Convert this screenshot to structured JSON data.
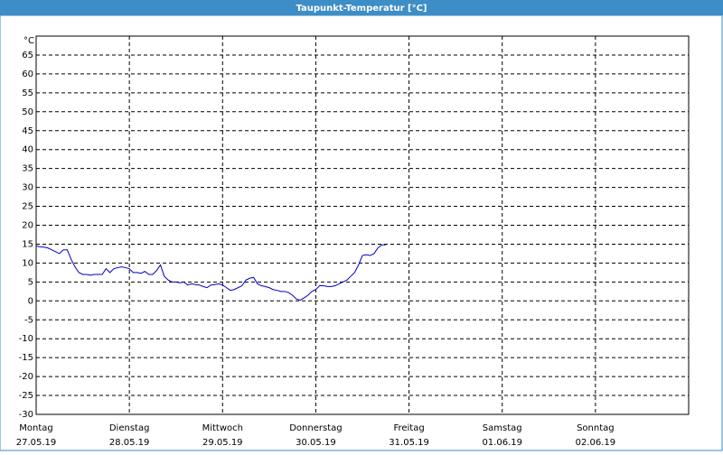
{
  "chart_data": {
    "type": "line",
    "title": "Taupunkt-Temperatur [°C]",
    "y_unit": "°C",
    "x": [
      0,
      1,
      2,
      3,
      4,
      5,
      6,
      7,
      8,
      9,
      10,
      11,
      12,
      13,
      14,
      15,
      16,
      17,
      18,
      19,
      20,
      21,
      22,
      23,
      24,
      25,
      26,
      27,
      28,
      29,
      30,
      31,
      32,
      33,
      34,
      35,
      36,
      37,
      38,
      39,
      40,
      41,
      42,
      43,
      44,
      45,
      46,
      47,
      48,
      49,
      50,
      51,
      52,
      53,
      54,
      55,
      56,
      57,
      58,
      59,
      60,
      61,
      62,
      63,
      64,
      65,
      66,
      67,
      68,
      69,
      70,
      71,
      72,
      73,
      74,
      75,
      76,
      77,
      78,
      79,
      80,
      81,
      82,
      83,
      84,
      85,
      86,
      87,
      88,
      89,
      90
    ],
    "series": [
      {
        "color": "#0000c0",
        "values": [
          14.5,
          14.3,
          14.2,
          14.0,
          13.5,
          13,
          12.5,
          13.5,
          13.5,
          11,
          9,
          7.5,
          7,
          7,
          6.8,
          7,
          7,
          7,
          8.5,
          7.5,
          8.5,
          8.8,
          9,
          8.8,
          8.5,
          7.5,
          7.5,
          7.3,
          7.8,
          7,
          7,
          8,
          9.5,
          6.5,
          5.5,
          5,
          5,
          4.8,
          5,
          4.2,
          4.5,
          4.3,
          4.2,
          3.8,
          3.5,
          4.2,
          4.3,
          4.5,
          4.2,
          3.5,
          2.8,
          3,
          3.5,
          4,
          5.5,
          6,
          6.2,
          4.5,
          4,
          3.8,
          3.5,
          3,
          2.8,
          2.5,
          2.5,
          2.2,
          1.5,
          0.5,
          0.2,
          0.8,
          1.5,
          2.5,
          3,
          4,
          4,
          3.8,
          3.8,
          4,
          4.5,
          5,
          5.5,
          6.5,
          7.5,
          9.5,
          12,
          12.2,
          12,
          12.5,
          14,
          14.8,
          14.8
        ]
      }
    ],
    "xlim": [
      0,
      168
    ],
    "xticks": [
      {
        "value": 0,
        "label": "Montag",
        "date": "27.05.19"
      },
      {
        "value": 24,
        "label": "Dienstag",
        "date": "28.05.19"
      },
      {
        "value": 48,
        "label": "Mittwoch",
        "date": "29.05.19"
      },
      {
        "value": 72,
        "label": "Donnerstag",
        "date": "30.05.19"
      },
      {
        "value": 96,
        "label": "Freitag",
        "date": "31.05.19"
      },
      {
        "value": 120,
        "label": "Samstag",
        "date": "01.06.19"
      },
      {
        "value": 144,
        "label": "Sonntag",
        "date": "02.06.19"
      }
    ],
    "ylim": [
      -30,
      70
    ],
    "yticks": [
      -30,
      -25,
      -20,
      -15,
      -10,
      -5,
      0,
      5,
      10,
      15,
      20,
      25,
      30,
      35,
      40,
      45,
      50,
      55,
      60,
      65
    ],
    "grid": true
  }
}
